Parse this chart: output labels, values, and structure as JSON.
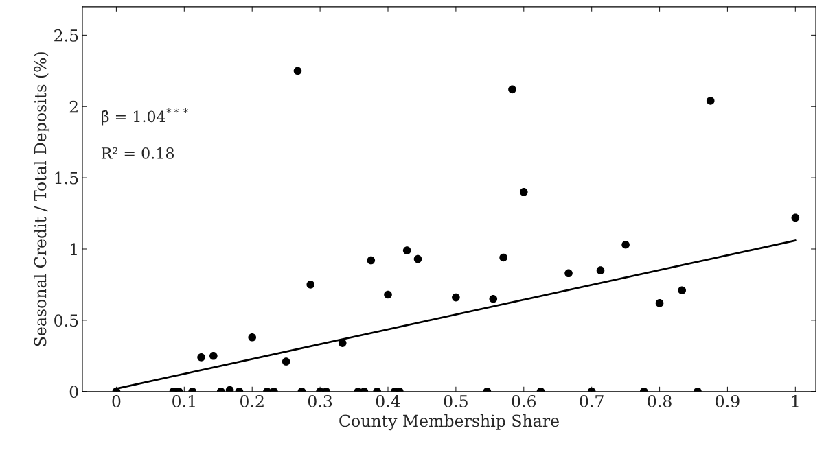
{
  "chart_data": {
    "type": "scatter",
    "xlabel": "County Membership Share",
    "ylabel": "Seasonal Credit / Total Deposits (%)",
    "annotations": [
      "β̂ = 1.04$^{***}$",
      "R² = 0.18"
    ],
    "xlim": [
      -0.05,
      1.03
    ],
    "ylim": [
      0,
      2.7
    ],
    "xticks": [
      0,
      0.1,
      0.2,
      0.3,
      0.4,
      0.5,
      0.6,
      0.7,
      0.8,
      0.9,
      1
    ],
    "yticks": [
      0,
      0.5,
      1,
      1.5,
      2,
      2.5
    ],
    "grid": false,
    "legend": false,
    "marker": "circle",
    "series": [
      {
        "color": "#000000",
        "x": [
          0,
          0.084,
          0.092,
          0.112,
          0.125,
          0.143,
          0.154,
          0.167,
          0.181,
          0.2,
          0.222,
          0.232,
          0.25,
          0.267,
          0.273,
          0.286,
          0.3,
          0.309,
          0.333,
          0.356,
          0.365,
          0.375,
          0.384,
          0.4,
          0.41,
          0.417,
          0.428,
          0.444,
          0.5,
          0.546,
          0.555,
          0.57,
          0.583,
          0.6,
          0.625,
          0.666,
          0.7,
          0.713,
          0.75,
          0.777,
          0.8,
          0.833,
          0.856,
          0.875,
          1
        ],
        "values": [
          0,
          0,
          0,
          0,
          0.24,
          0.25,
          0,
          0.01,
          0,
          0.38,
          0,
          0,
          0.21,
          2.25,
          0,
          0.75,
          0,
          0,
          0.34,
          0,
          0,
          0.92,
          0,
          0.68,
          0,
          0,
          0.99,
          0.93,
          0.66,
          0,
          0.65,
          0.94,
          2.12,
          1.4,
          0,
          0.83,
          0,
          0.85,
          1.03,
          0,
          0.62,
          0.71,
          0,
          2.04,
          1.22
        ]
      },
      {
        "type": "line",
        "color": "#000000",
        "x": [
          0,
          1
        ],
        "values": [
          0.02,
          1.06
        ],
        "line_style": "solid",
        "marker": "none"
      }
    ]
  }
}
